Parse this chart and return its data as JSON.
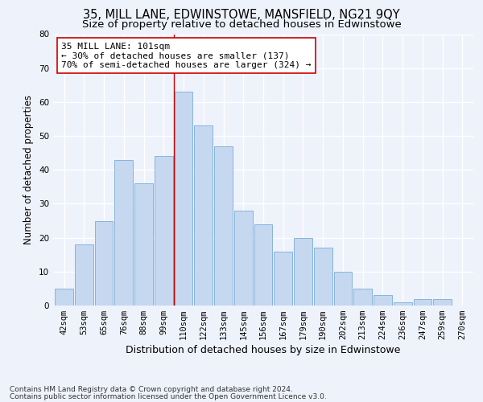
{
  "title": "35, MILL LANE, EDWINSTOWE, MANSFIELD, NG21 9QY",
  "subtitle": "Size of property relative to detached houses in Edwinstowe",
  "xlabel": "Distribution of detached houses by size in Edwinstowe",
  "ylabel": "Number of detached properties",
  "categories": [
    "42sqm",
    "53sqm",
    "65sqm",
    "76sqm",
    "88sqm",
    "99sqm",
    "110sqm",
    "122sqm",
    "133sqm",
    "145sqm",
    "156sqm",
    "167sqm",
    "179sqm",
    "190sqm",
    "202sqm",
    "213sqm",
    "224sqm",
    "236sqm",
    "247sqm",
    "259sqm",
    "270sqm"
  ],
  "values": [
    5,
    18,
    25,
    43,
    36,
    44,
    63,
    53,
    47,
    28,
    24,
    16,
    20,
    17,
    10,
    5,
    3,
    1,
    2,
    2,
    0
  ],
  "bar_color": "#c5d8f0",
  "bar_edge_color": "#7badd4",
  "background_color": "#eef2fb",
  "grid_color": "#ffffff",
  "vline_x_idx": 5,
  "vline_color": "#cc0000",
  "annotation_line1": "35 MILL LANE: 101sqm",
  "annotation_line2": "← 30% of detached houses are smaller (137)",
  "annotation_line3": "70% of semi-detached houses are larger (324) →",
  "annotation_box_color": "#ffffff",
  "annotation_box_edge": "#cc0000",
  "footnote1": "Contains HM Land Registry data © Crown copyright and database right 2024.",
  "footnote2": "Contains public sector information licensed under the Open Government Licence v3.0.",
  "ylim": [
    0,
    80
  ],
  "yticks": [
    0,
    10,
    20,
    30,
    40,
    50,
    60,
    70,
    80
  ],
  "title_fontsize": 10.5,
  "subtitle_fontsize": 9.5,
  "xlabel_fontsize": 9,
  "ylabel_fontsize": 8.5,
  "tick_fontsize": 7.5,
  "annotation_fontsize": 8,
  "footnote_fontsize": 6.5
}
